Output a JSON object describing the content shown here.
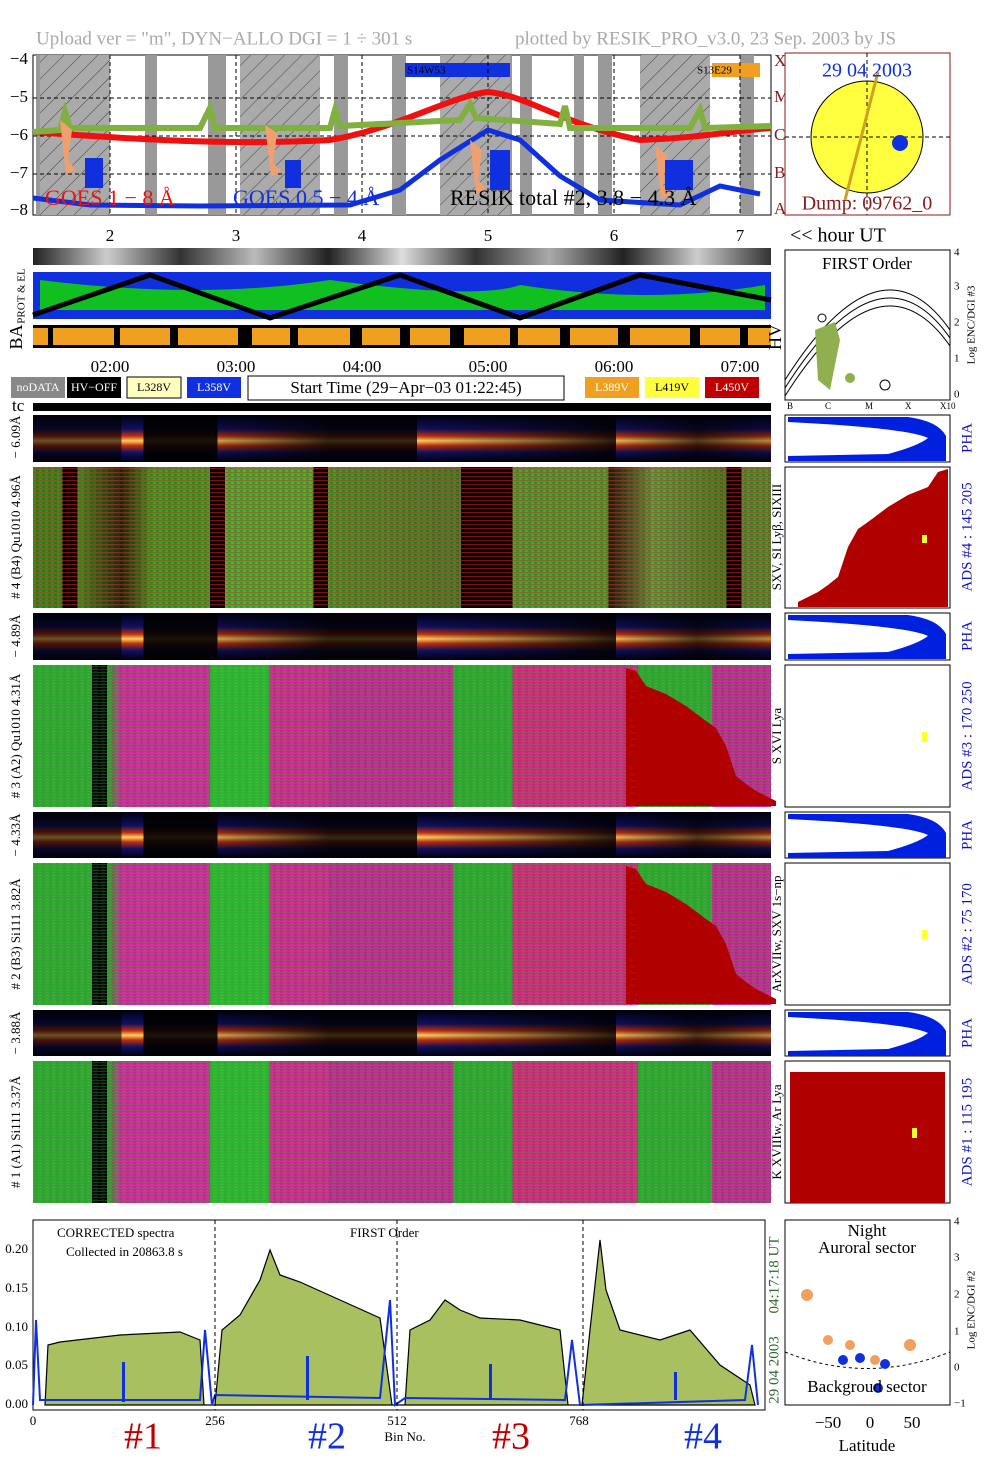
{
  "header": {
    "left": "Upload ver = \"m\", DYN−ALLO DGI =   1 ÷ 301 s",
    "right": "plotted by RESIK_PRO_v3.0, 23 Sep. 2003 by JS"
  },
  "goes_panel": {
    "yticks": [
      "−4",
      "−5",
      "−6",
      "−7",
      "−8"
    ],
    "class_letters": [
      "X",
      "M",
      "C",
      "B",
      "A"
    ],
    "legend": [
      "GOES 1 − 8 Å",
      "GOES 0.5 − 4 Å",
      "RESIK total #2, 3.8 − 4.3 Å"
    ],
    "regions": [
      "S14W53",
      "S13E29"
    ],
    "hours": [
      "2",
      "3",
      "4",
      "5",
      "6",
      "7"
    ],
    "hour_note": "<< hour UT"
  },
  "sun": {
    "date": "29 04 2003",
    "dump": "Dump: 09762_0"
  },
  "strips": {
    "prot_el": "PROT & EL",
    "ba": "BA",
    "hv": "HV"
  },
  "time_axis": [
    "02:00",
    "03:00",
    "04:00",
    "05:00",
    "06:00",
    "07:00"
  ],
  "status": {
    "buttons": [
      "noDATA",
      "HV−OFF",
      "L328V",
      "L358V",
      "L389V",
      "L419V",
      "L450V"
    ],
    "start_time": "Start Time (29−Apr−03 01:22:45)"
  },
  "tc": "tc",
  "first_order_plot": {
    "title": "FIRST Order",
    "yticks": [
      "0",
      "1",
      "2",
      "3",
      "4"
    ],
    "ylabel": "Log ENC/DGI #3",
    "xticks": [
      "B",
      "C",
      "M",
      "X",
      "X10"
    ]
  },
  "detectors": [
    {
      "spec_label": "# 4 (B4) Qu1010 4.96Å",
      "pha_label": "− 6.09Å",
      "ads": "ADS #4 :  145 205",
      "pha": "PHA",
      "lines": "SXV, SI Lyβ, SIXIII"
    },
    {
      "spec_label": "# 3 (A2) Qu1010 4.31Å",
      "pha_label": "− 4.89Å",
      "ads": "ADS #3 :  170 250",
      "pha": "PHA",
      "lines": "S XVI Lya"
    },
    {
      "spec_label": "# 2 (B3) Si111 3.82Å",
      "pha_label": "− 4.33Å",
      "ads": "ADS #2 :  75 170",
      "pha": "PHA",
      "lines": "ArXVIIw, SXV 1s−np"
    },
    {
      "spec_label": "# 1 (A1) Si111 3.37Å",
      "pha_label": "− 3.88Å",
      "ads": "ADS #1 :  115 195",
      "pha": "PHA",
      "lines": "K XVIIIw, Ar Lya"
    }
  ],
  "spectrum": {
    "yticks": [
      "0.00",
      "0.05",
      "0.10",
      "0.15",
      "0.20"
    ],
    "xticks": [
      "0",
      "256",
      "512",
      "768"
    ],
    "xlabel": "Bin No.",
    "note1": "CORRECTED spectra",
    "note2": "Collected in 20863.8 s",
    "order": "FIRST Order",
    "time": "04:17:18 UT",
    "date": "29 04 2003",
    "detectors": [
      "#1",
      "#2",
      "#3",
      "#4"
    ]
  },
  "latitude_plot": {
    "title1": "Night",
    "title2": "Auroral sector",
    "bottom": "Backgroud sector",
    "yticks": [
      "4",
      "3",
      "2",
      "1",
      "0",
      "−1"
    ],
    "ylabel": "Log ENC/DGI #2",
    "xticks": [
      "−50",
      "0",
      "50"
    ],
    "xlabel": "Latitude"
  }
}
